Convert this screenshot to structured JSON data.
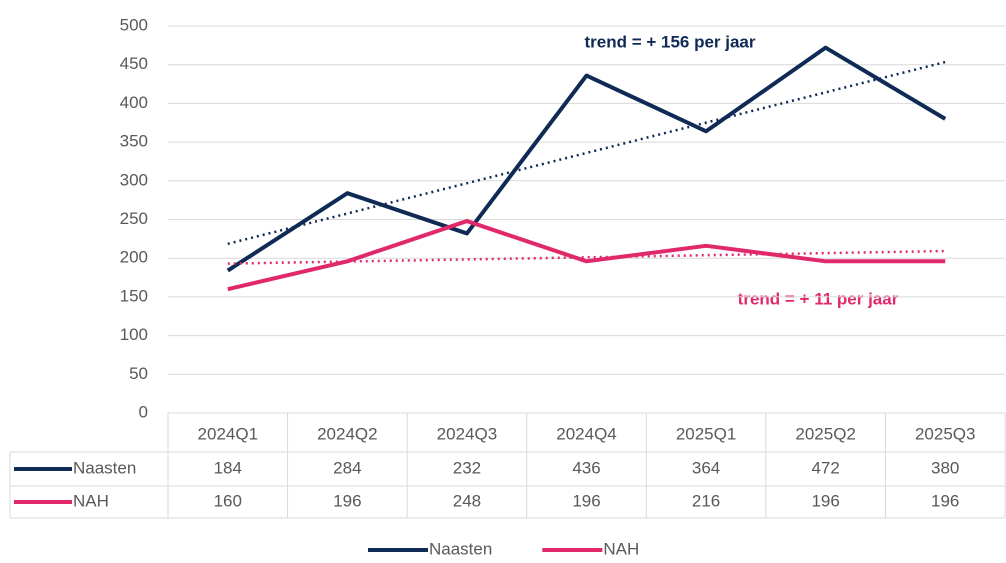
{
  "chart_data": {
    "type": "line",
    "categories": [
      "2024Q1",
      "2024Q2",
      "2024Q3",
      "2024Q4",
      "2025Q1",
      "2025Q2",
      "2025Q3"
    ],
    "series": [
      {
        "name": "Naasten",
        "color": "#0f2a55",
        "values": [
          184,
          284,
          232,
          436,
          364,
          472,
          380
        ]
      },
      {
        "name": "NAH",
        "color": "#e0286b",
        "values": [
          160,
          196,
          248,
          196,
          216,
          196,
          196
        ]
      }
    ],
    "annotations": [
      "trend = + 156 per jaar",
      "trend = + 11 per jaar"
    ],
    "trendline": true,
    "ylim": [
      0,
      500
    ],
    "yticks": [
      0,
      50,
      100,
      150,
      200,
      250,
      300,
      350,
      400,
      450,
      500
    ],
    "grid": true,
    "legend": "bottom"
  }
}
